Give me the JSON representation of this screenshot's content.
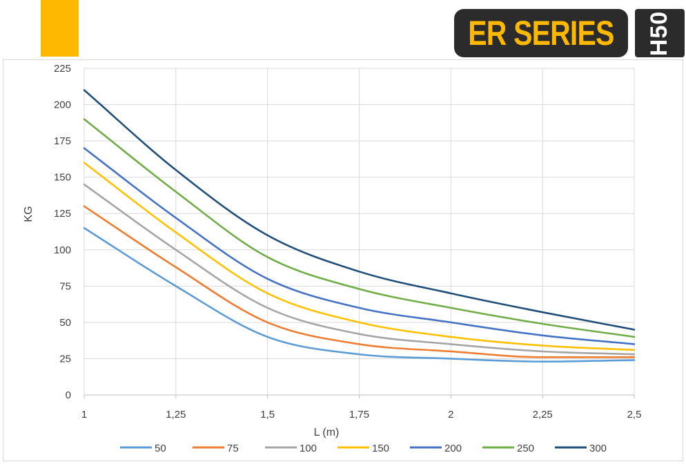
{
  "header": {
    "brand": "ER SERIES",
    "model": "H50",
    "colors": {
      "accent": "#FFB800",
      "dark": "#2B2B2B",
      "brand_text": "#FFB800",
      "model_text": "#FFFFFF"
    }
  },
  "chart_data": {
    "type": "line",
    "title": "",
    "xlabel": "L (m)",
    "ylabel": "KG",
    "x": [
      1,
      1.25,
      1.5,
      1.75,
      2,
      2.25,
      2.5
    ],
    "x_tick_labels": [
      "1",
      "1,25",
      "1,5",
      "1,75",
      "2",
      "2,25",
      "2,5"
    ],
    "xlim": [
      1,
      2.5
    ],
    "ylim": [
      0,
      225
    ],
    "y_ticks": [
      0,
      25,
      50,
      75,
      100,
      125,
      150,
      175,
      200,
      225
    ],
    "grid": true,
    "legend_position": "bottom",
    "series": [
      {
        "name": "50",
        "color": "#5B9BD5",
        "values": [
          115,
          75,
          40,
          28,
          25,
          23,
          24
        ]
      },
      {
        "name": "75",
        "color": "#ED7D31",
        "values": [
          130,
          88,
          50,
          35,
          30,
          26,
          26
        ]
      },
      {
        "name": "100",
        "color": "#A5A5A5",
        "values": [
          145,
          100,
          60,
          42,
          35,
          30,
          28
        ]
      },
      {
        "name": "150",
        "color": "#FFC000",
        "values": [
          160,
          112,
          70,
          50,
          40,
          34,
          31
        ]
      },
      {
        "name": "200",
        "color": "#4472C4",
        "values": [
          170,
          122,
          80,
          60,
          50,
          41,
          35
        ]
      },
      {
        "name": "250",
        "color": "#70AD47",
        "values": [
          190,
          140,
          95,
          73,
          60,
          49,
          40
        ]
      },
      {
        "name": "300",
        "color": "#1F4E79",
        "values": [
          210,
          155,
          110,
          85,
          70,
          57,
          45
        ]
      }
    ]
  }
}
